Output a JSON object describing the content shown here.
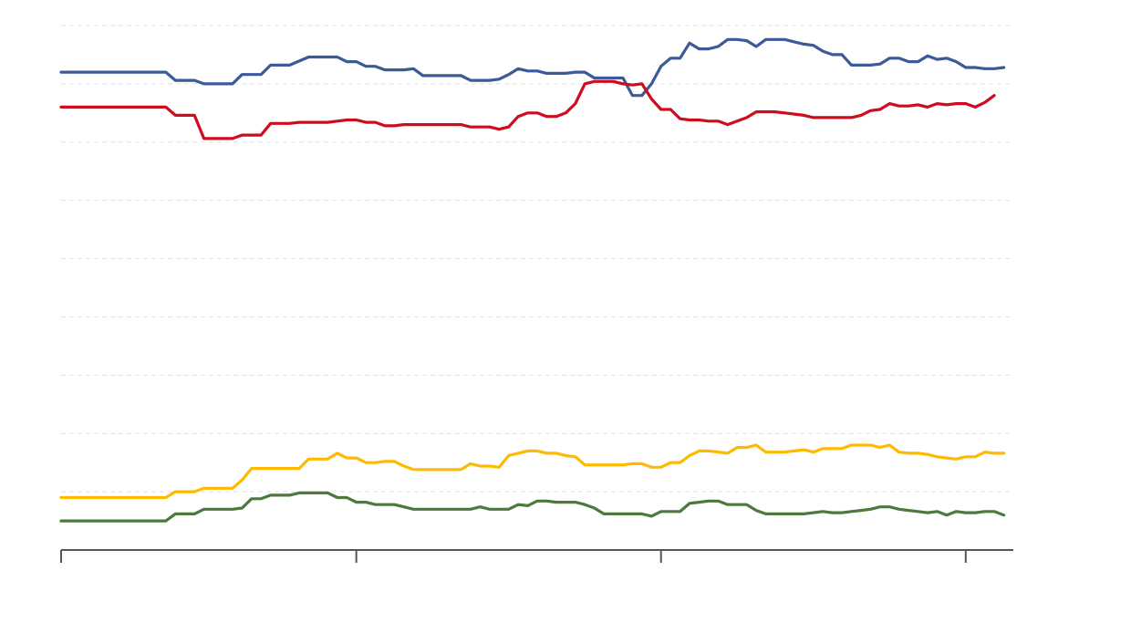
{
  "chart_data": {
    "type": "line",
    "x_domain": [
      0,
      100
    ],
    "ylim": [
      0,
      45
    ],
    "y_gridlines": [
      5,
      10,
      15,
      20,
      25,
      30,
      35,
      40,
      45
    ],
    "x_ticks": [
      0,
      31,
      63,
      95
    ],
    "grid": true,
    "legend": "none",
    "series": [
      {
        "color": "#3a5a98",
        "points": [
          [
            0,
            41
          ],
          [
            11,
            41
          ],
          [
            12,
            40.3
          ],
          [
            14,
            40.3
          ],
          [
            15,
            40
          ],
          [
            18,
            40
          ],
          [
            19,
            40.8
          ],
          [
            21,
            40.8
          ],
          [
            22,
            41.6
          ],
          [
            24,
            41.6
          ],
          [
            26,
            42.3
          ],
          [
            29,
            42.3
          ],
          [
            30,
            41.9
          ],
          [
            31,
            41.9
          ],
          [
            32,
            41.5
          ],
          [
            33,
            41.5
          ],
          [
            34,
            41.2
          ],
          [
            36,
            41.2
          ],
          [
            37,
            41.3
          ],
          [
            38,
            40.7
          ],
          [
            42,
            40.7
          ],
          [
            43,
            40.3
          ],
          [
            45,
            40.3
          ],
          [
            46,
            40.4
          ],
          [
            47,
            40.8
          ],
          [
            48,
            41.3
          ],
          [
            49,
            41.1
          ],
          [
            50,
            41.1
          ],
          [
            51,
            40.9
          ],
          [
            53,
            40.9
          ],
          [
            54,
            41
          ],
          [
            55,
            41
          ],
          [
            56,
            40.5
          ],
          [
            59,
            40.5
          ],
          [
            60,
            39
          ],
          [
            61,
            39
          ],
          [
            62,
            40
          ],
          [
            63,
            41.5
          ],
          [
            64,
            42.2
          ],
          [
            65,
            42.2
          ],
          [
            66,
            43.5
          ],
          [
            67,
            43
          ],
          [
            68,
            43
          ],
          [
            69,
            43.2
          ],
          [
            70,
            43.8
          ],
          [
            71,
            43.8
          ],
          [
            72,
            43.7
          ],
          [
            73,
            43.2
          ],
          [
            74,
            43.8
          ],
          [
            76,
            43.8
          ],
          [
            77,
            43.6
          ],
          [
            78,
            43.4
          ],
          [
            79,
            43.3
          ],
          [
            80,
            42.8
          ],
          [
            81,
            42.5
          ],
          [
            82,
            42.5
          ],
          [
            83,
            41.6
          ],
          [
            85,
            41.6
          ],
          [
            86,
            41.7
          ],
          [
            87,
            42.2
          ],
          [
            88,
            42.2
          ],
          [
            89,
            41.9
          ],
          [
            90,
            41.9
          ],
          [
            91,
            42.4
          ],
          [
            92,
            42.1
          ],
          [
            93,
            42.2
          ],
          [
            94,
            41.9
          ],
          [
            95,
            41.4
          ],
          [
            96,
            41.4
          ],
          [
            97,
            41.3
          ],
          [
            98,
            41.3
          ],
          [
            99,
            41.4
          ]
        ]
      },
      {
        "color": "#cf0c1e",
        "points": [
          [
            0,
            38
          ],
          [
            11,
            38
          ],
          [
            12,
            37.3
          ],
          [
            14,
            37.3
          ],
          [
            15,
            35.3
          ],
          [
            18,
            35.3
          ],
          [
            19,
            35.6
          ],
          [
            21,
            35.6
          ],
          [
            22,
            36.6
          ],
          [
            24,
            36.6
          ],
          [
            25,
            36.7
          ],
          [
            28,
            36.7
          ],
          [
            29,
            36.8
          ],
          [
            30,
            36.9
          ],
          [
            31,
            36.9
          ],
          [
            32,
            36.7
          ],
          [
            33,
            36.7
          ],
          [
            34,
            36.4
          ],
          [
            35,
            36.4
          ],
          [
            36,
            36.5
          ],
          [
            42,
            36.5
          ],
          [
            43,
            36.3
          ],
          [
            45,
            36.3
          ],
          [
            46,
            36.1
          ],
          [
            47,
            36.3
          ],
          [
            48,
            37.2
          ],
          [
            49,
            37.5
          ],
          [
            50,
            37.5
          ],
          [
            51,
            37.2
          ],
          [
            52,
            37.2
          ],
          [
            53,
            37.5
          ],
          [
            54,
            38.3
          ],
          [
            55,
            40
          ],
          [
            56,
            40.2
          ],
          [
            58,
            40.2
          ],
          [
            59,
            40
          ],
          [
            60,
            39.9
          ],
          [
            61,
            40
          ],
          [
            62,
            38.7
          ],
          [
            63,
            37.8
          ],
          [
            64,
            37.8
          ],
          [
            65,
            37
          ],
          [
            66,
            36.9
          ],
          [
            67,
            36.9
          ],
          [
            68,
            36.8
          ],
          [
            69,
            36.8
          ],
          [
            70,
            36.5
          ],
          [
            71,
            36.8
          ],
          [
            72,
            37.1
          ],
          [
            73,
            37.6
          ],
          [
            75,
            37.6
          ],
          [
            76,
            37.5
          ],
          [
            77,
            37.4
          ],
          [
            78,
            37.3
          ],
          [
            79,
            37.1
          ],
          [
            83,
            37.1
          ],
          [
            84,
            37.3
          ],
          [
            85,
            37.7
          ],
          [
            86,
            37.8
          ],
          [
            87,
            38.3
          ],
          [
            88,
            38.1
          ],
          [
            89,
            38.1
          ],
          [
            90,
            38.2
          ],
          [
            91,
            38
          ],
          [
            92,
            38.3
          ],
          [
            93,
            38.2
          ],
          [
            94,
            38.3
          ],
          [
            95,
            38.3
          ],
          [
            96,
            38
          ],
          [
            97,
            38.4
          ],
          [
            98,
            39
          ]
        ]
      },
      {
        "color": "#ffb900",
        "points": [
          [
            0,
            4.5
          ],
          [
            11,
            4.5
          ],
          [
            12,
            5
          ],
          [
            14,
            5
          ],
          [
            15,
            5.3
          ],
          [
            18,
            5.3
          ],
          [
            19,
            6
          ],
          [
            20,
            7
          ],
          [
            22,
            7
          ],
          [
            24,
            7
          ],
          [
            25,
            7
          ],
          [
            26,
            7.8
          ],
          [
            28,
            7.8
          ],
          [
            29,
            8.3
          ],
          [
            30,
            7.9
          ],
          [
            31,
            7.9
          ],
          [
            32,
            7.5
          ],
          [
            33,
            7.5
          ],
          [
            34,
            7.6
          ],
          [
            35,
            7.6
          ],
          [
            36,
            7.2
          ],
          [
            37,
            6.9
          ],
          [
            42,
            6.9
          ],
          [
            43,
            7.4
          ],
          [
            44,
            7.2
          ],
          [
            45,
            7.2
          ],
          [
            46,
            7.1
          ],
          [
            47,
            8.1
          ],
          [
            48,
            8.3
          ],
          [
            49,
            8.5
          ],
          [
            50,
            8.5
          ],
          [
            51,
            8.3
          ],
          [
            52,
            8.3
          ],
          [
            53,
            8.1
          ],
          [
            54,
            8
          ],
          [
            55,
            7.3
          ],
          [
            59,
            7.3
          ],
          [
            60,
            7.4
          ],
          [
            61,
            7.4
          ],
          [
            62,
            7.1
          ],
          [
            63,
            7.1
          ],
          [
            64,
            7.5
          ],
          [
            65,
            7.5
          ],
          [
            66,
            8.1
          ],
          [
            67,
            8.5
          ],
          [
            68,
            8.5
          ],
          [
            69,
            8.4
          ],
          [
            70,
            8.3
          ],
          [
            71,
            8.8
          ],
          [
            72,
            8.8
          ],
          [
            73,
            9
          ],
          [
            74,
            8.4
          ],
          [
            76,
            8.4
          ],
          [
            77,
            8.5
          ],
          [
            78,
            8.6
          ],
          [
            79,
            8.4
          ],
          [
            80,
            8.7
          ],
          [
            82,
            8.7
          ],
          [
            83,
            9
          ],
          [
            85,
            9
          ],
          [
            86,
            8.8
          ],
          [
            87,
            9
          ],
          [
            88,
            8.4
          ],
          [
            89,
            8.3
          ],
          [
            90,
            8.3
          ],
          [
            91,
            8.2
          ],
          [
            92,
            8
          ],
          [
            93,
            7.9
          ],
          [
            94,
            7.8
          ],
          [
            95,
            8
          ],
          [
            96,
            8
          ],
          [
            97,
            8.4
          ],
          [
            98,
            8.3
          ],
          [
            99,
            8.3
          ]
        ]
      },
      {
        "color": "#4b7a3c",
        "points": [
          [
            0,
            2.5
          ],
          [
            11,
            2.5
          ],
          [
            12,
            3.1
          ],
          [
            14,
            3.1
          ],
          [
            15,
            3.5
          ],
          [
            18,
            3.5
          ],
          [
            19,
            3.6
          ],
          [
            20,
            4.4
          ],
          [
            21,
            4.4
          ],
          [
            22,
            4.7
          ],
          [
            24,
            4.7
          ],
          [
            25,
            4.9
          ],
          [
            28,
            4.9
          ],
          [
            29,
            4.5
          ],
          [
            30,
            4.5
          ],
          [
            31,
            4.1
          ],
          [
            32,
            4.1
          ],
          [
            33,
            3.9
          ],
          [
            35,
            3.9
          ],
          [
            36,
            3.7
          ],
          [
            37,
            3.5
          ],
          [
            43,
            3.5
          ],
          [
            44,
            3.7
          ],
          [
            45,
            3.5
          ],
          [
            46,
            3.5
          ],
          [
            47,
            3.5
          ],
          [
            48,
            3.9
          ],
          [
            49,
            3.8
          ],
          [
            50,
            4.2
          ],
          [
            51,
            4.2
          ],
          [
            52,
            4.1
          ],
          [
            54,
            4.1
          ],
          [
            55,
            3.9
          ],
          [
            56,
            3.6
          ],
          [
            57,
            3.1
          ],
          [
            60,
            3.1
          ],
          [
            61,
            3.1
          ],
          [
            62,
            2.9
          ],
          [
            63,
            3.3
          ],
          [
            65,
            3.3
          ],
          [
            66,
            4
          ],
          [
            67,
            4.1
          ],
          [
            68,
            4.2
          ],
          [
            69,
            4.2
          ],
          [
            70,
            3.9
          ],
          [
            72,
            3.9
          ],
          [
            73,
            3.4
          ],
          [
            74,
            3.1
          ],
          [
            78,
            3.1
          ],
          [
            79,
            3.2
          ],
          [
            80,
            3.3
          ],
          [
            81,
            3.2
          ],
          [
            82,
            3.2
          ],
          [
            83,
            3.3
          ],
          [
            84,
            3.4
          ],
          [
            85,
            3.5
          ],
          [
            86,
            3.7
          ],
          [
            87,
            3.7
          ],
          [
            88,
            3.5
          ],
          [
            89,
            3.4
          ],
          [
            90,
            3.3
          ],
          [
            91,
            3.2
          ],
          [
            92,
            3.3
          ],
          [
            93,
            3
          ],
          [
            94,
            3.3
          ],
          [
            95,
            3.2
          ],
          [
            96,
            3.2
          ],
          [
            97,
            3.3
          ],
          [
            98,
            3.3
          ],
          [
            99,
            3
          ]
        ]
      }
    ]
  }
}
